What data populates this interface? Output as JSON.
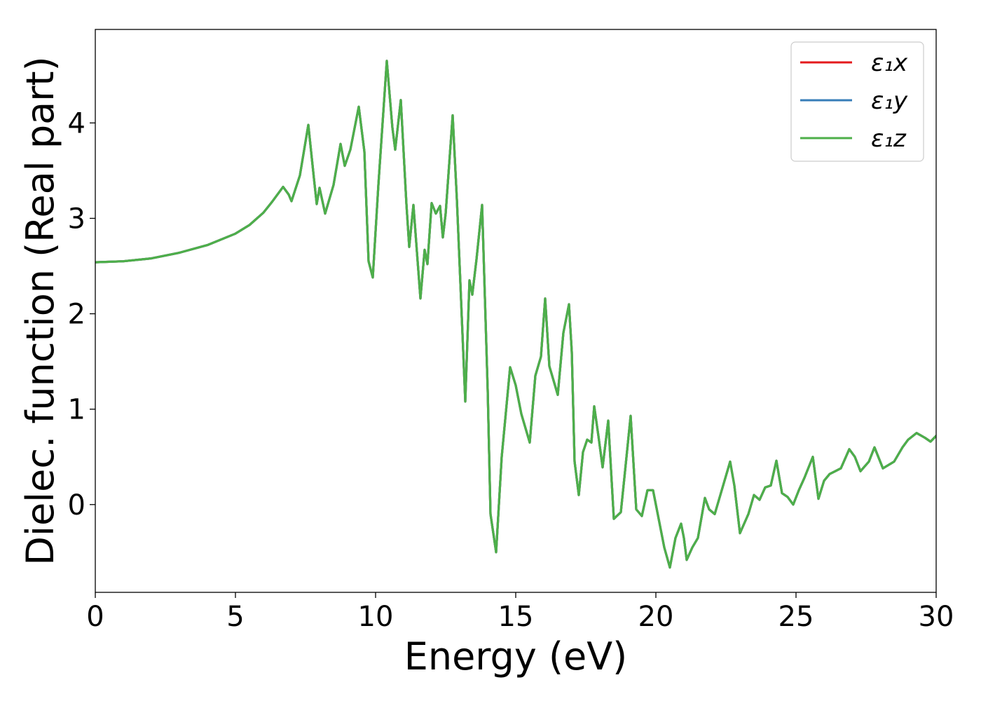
{
  "chart_data": {
    "type": "line",
    "title": "",
    "xlabel": "Energy (eV)",
    "ylabel": "Dielec. function (Real part)",
    "xlim": [
      0,
      30
    ],
    "ylim": [
      -0.92,
      4.98
    ],
    "xticks": [
      0,
      5,
      10,
      15,
      20,
      25,
      30
    ],
    "yticks": [
      0,
      1,
      2,
      3,
      4
    ],
    "grid": false,
    "legend_position": "top-right",
    "series": [
      {
        "name": "ε₁x",
        "color": "#e41a1c",
        "x": [
          0,
          1,
          2,
          3,
          4,
          5,
          5.5,
          6,
          6.3,
          6.7,
          6.9,
          7.0,
          7.3,
          7.6,
          7.8,
          7.9,
          8.0,
          8.2,
          8.5,
          8.75,
          8.9,
          9.1,
          9.4,
          9.6,
          9.75,
          9.9,
          10.1,
          10.4,
          10.6,
          10.7,
          10.9,
          11.1,
          11.2,
          11.35,
          11.5,
          11.6,
          11.75,
          11.85,
          12.0,
          12.15,
          12.3,
          12.4,
          12.5,
          12.75,
          12.9,
          13.0,
          13.2,
          13.35,
          13.45,
          13.6,
          13.8,
          14.0,
          14.1,
          14.3,
          14.5,
          14.8,
          15.0,
          15.2,
          15.5,
          15.7,
          15.9,
          16.05,
          16.2,
          16.3,
          16.5,
          16.7,
          16.9,
          17.0,
          17.1,
          17.25,
          17.4,
          17.55,
          17.7,
          17.8,
          17.95,
          18.1,
          18.3,
          18.5,
          18.75,
          18.9,
          19.1,
          19.3,
          19.5,
          19.7,
          19.9,
          20.1,
          20.3,
          20.5,
          20.7,
          20.9,
          21.0,
          21.1,
          21.3,
          21.5,
          21.75,
          21.9,
          22.1,
          22.4,
          22.65,
          22.8,
          23.0,
          23.3,
          23.5,
          23.7,
          23.9,
          24.1,
          24.3,
          24.5,
          24.7,
          24.9,
          25.1,
          25.3,
          25.6,
          25.8,
          26.0,
          26.2,
          26.4,
          26.6,
          26.9,
          27.1,
          27.3,
          27.6,
          27.8,
          28.1,
          28.5,
          28.8,
          29.0,
          29.3,
          29.6,
          29.8,
          30.0
        ],
        "y": [
          2.54,
          2.55,
          2.58,
          2.64,
          2.72,
          2.84,
          2.93,
          3.06,
          3.17,
          3.33,
          3.25,
          3.18,
          3.45,
          3.98,
          3.42,
          3.15,
          3.32,
          3.05,
          3.35,
          3.78,
          3.55,
          3.72,
          4.17,
          3.7,
          2.55,
          2.38,
          3.35,
          4.65,
          3.95,
          3.72,
          4.24,
          3.15,
          2.7,
          3.14,
          2.55,
          2.16,
          2.67,
          2.52,
          3.16,
          3.05,
          3.13,
          2.8,
          3.05,
          4.08,
          3.2,
          2.5,
          1.08,
          2.35,
          2.2,
          2.57,
          3.14,
          1.2,
          -0.1,
          -0.5,
          0.5,
          1.44,
          1.25,
          0.95,
          0.65,
          1.35,
          1.55,
          2.16,
          1.45,
          1.35,
          1.15,
          1.8,
          2.1,
          1.6,
          0.45,
          0.1,
          0.55,
          0.68,
          0.65,
          1.03,
          0.72,
          0.39,
          0.88,
          -0.15,
          -0.08,
          0.35,
          0.93,
          -0.05,
          -0.12,
          0.15,
          0.15,
          -0.15,
          -0.45,
          -0.66,
          -0.35,
          -0.2,
          -0.35,
          -0.58,
          -0.45,
          -0.35,
          0.07,
          -0.05,
          -0.1,
          0.2,
          0.45,
          0.2,
          -0.3,
          -0.1,
          0.1,
          0.05,
          0.18,
          0.2,
          0.46,
          0.12,
          0.08,
          0.0,
          0.15,
          0.28,
          0.5,
          0.06,
          0.25,
          0.32,
          0.35,
          0.38,
          0.58,
          0.5,
          0.35,
          0.45,
          0.6,
          0.38,
          0.45,
          0.6,
          0.68,
          0.75,
          0.7,
          0.66,
          0.72
        ]
      },
      {
        "name": "ε₁y",
        "color": "#377eb8",
        "x": [
          0,
          1,
          2,
          3,
          4,
          5,
          5.5,
          6,
          6.3,
          6.7,
          6.9,
          7.0,
          7.3,
          7.6,
          7.8,
          7.9,
          8.0,
          8.2,
          8.5,
          8.75,
          8.9,
          9.1,
          9.4,
          9.6,
          9.75,
          9.9,
          10.1,
          10.4,
          10.6,
          10.7,
          10.9,
          11.1,
          11.2,
          11.35,
          11.5,
          11.6,
          11.75,
          11.85,
          12.0,
          12.15,
          12.3,
          12.4,
          12.5,
          12.75,
          12.9,
          13.0,
          13.2,
          13.35,
          13.45,
          13.6,
          13.8,
          14.0,
          14.1,
          14.3,
          14.5,
          14.8,
          15.0,
          15.2,
          15.5,
          15.7,
          15.9,
          16.05,
          16.2,
          16.3,
          16.5,
          16.7,
          16.9,
          17.0,
          17.1,
          17.25,
          17.4,
          17.55,
          17.7,
          17.8,
          17.95,
          18.1,
          18.3,
          18.5,
          18.75,
          18.9,
          19.1,
          19.3,
          19.5,
          19.7,
          19.9,
          20.1,
          20.3,
          20.5,
          20.7,
          20.9,
          21.0,
          21.1,
          21.3,
          21.5,
          21.75,
          21.9,
          22.1,
          22.4,
          22.65,
          22.8,
          23.0,
          23.3,
          23.5,
          23.7,
          23.9,
          24.1,
          24.3,
          24.5,
          24.7,
          24.9,
          25.1,
          25.3,
          25.6,
          25.8,
          26.0,
          26.2,
          26.4,
          26.6,
          26.9,
          27.1,
          27.3,
          27.6,
          27.8,
          28.1,
          28.5,
          28.8,
          29.0,
          29.3,
          29.6,
          29.8,
          30.0
        ],
        "y": [
          2.54,
          2.55,
          2.58,
          2.64,
          2.72,
          2.84,
          2.93,
          3.06,
          3.17,
          3.33,
          3.25,
          3.18,
          3.45,
          3.98,
          3.42,
          3.15,
          3.32,
          3.05,
          3.35,
          3.78,
          3.55,
          3.72,
          4.17,
          3.7,
          2.55,
          2.38,
          3.35,
          4.65,
          3.95,
          3.72,
          4.24,
          3.15,
          2.7,
          3.14,
          2.55,
          2.16,
          2.67,
          2.52,
          3.16,
          3.05,
          3.13,
          2.8,
          3.05,
          4.08,
          3.2,
          2.5,
          1.08,
          2.35,
          2.2,
          2.57,
          3.14,
          1.2,
          -0.1,
          -0.5,
          0.5,
          1.44,
          1.25,
          0.95,
          0.65,
          1.35,
          1.55,
          2.16,
          1.45,
          1.35,
          1.15,
          1.8,
          2.1,
          1.6,
          0.45,
          0.1,
          0.55,
          0.68,
          0.65,
          1.03,
          0.72,
          0.39,
          0.88,
          -0.15,
          -0.08,
          0.35,
          0.93,
          -0.05,
          -0.12,
          0.15,
          0.15,
          -0.15,
          -0.45,
          -0.66,
          -0.35,
          -0.2,
          -0.35,
          -0.58,
          -0.45,
          -0.35,
          0.07,
          -0.05,
          -0.1,
          0.2,
          0.45,
          0.2,
          -0.3,
          -0.1,
          0.1,
          0.05,
          0.18,
          0.2,
          0.46,
          0.12,
          0.08,
          0.0,
          0.15,
          0.28,
          0.5,
          0.06,
          0.25,
          0.32,
          0.35,
          0.38,
          0.58,
          0.5,
          0.35,
          0.45,
          0.6,
          0.38,
          0.45,
          0.6,
          0.68,
          0.75,
          0.7,
          0.66,
          0.72
        ]
      },
      {
        "name": "ε₁z",
        "color": "#4daf4a",
        "x": [
          0,
          1,
          2,
          3,
          4,
          5,
          5.5,
          6,
          6.3,
          6.7,
          6.9,
          7.0,
          7.3,
          7.6,
          7.8,
          7.9,
          8.0,
          8.2,
          8.5,
          8.75,
          8.9,
          9.1,
          9.4,
          9.6,
          9.75,
          9.9,
          10.1,
          10.4,
          10.6,
          10.7,
          10.9,
          11.1,
          11.2,
          11.35,
          11.5,
          11.6,
          11.75,
          11.85,
          12.0,
          12.15,
          12.3,
          12.4,
          12.5,
          12.75,
          12.9,
          13.0,
          13.2,
          13.35,
          13.45,
          13.6,
          13.8,
          14.0,
          14.1,
          14.3,
          14.5,
          14.8,
          15.0,
          15.2,
          15.5,
          15.7,
          15.9,
          16.05,
          16.2,
          16.3,
          16.5,
          16.7,
          16.9,
          17.0,
          17.1,
          17.25,
          17.4,
          17.55,
          17.7,
          17.8,
          17.95,
          18.1,
          18.3,
          18.5,
          18.75,
          18.9,
          19.1,
          19.3,
          19.5,
          19.7,
          19.9,
          20.1,
          20.3,
          20.5,
          20.7,
          20.9,
          21.0,
          21.1,
          21.3,
          21.5,
          21.75,
          21.9,
          22.1,
          22.4,
          22.65,
          22.8,
          23.0,
          23.3,
          23.5,
          23.7,
          23.9,
          24.1,
          24.3,
          24.5,
          24.7,
          24.9,
          25.1,
          25.3,
          25.6,
          25.8,
          26.0,
          26.2,
          26.4,
          26.6,
          26.9,
          27.1,
          27.3,
          27.6,
          27.8,
          28.1,
          28.5,
          28.8,
          29.0,
          29.3,
          29.6,
          29.8,
          30.0
        ],
        "y": [
          2.54,
          2.55,
          2.58,
          2.64,
          2.72,
          2.84,
          2.93,
          3.06,
          3.17,
          3.33,
          3.25,
          3.18,
          3.45,
          3.98,
          3.42,
          3.15,
          3.32,
          3.05,
          3.35,
          3.78,
          3.55,
          3.72,
          4.17,
          3.7,
          2.55,
          2.38,
          3.35,
          4.65,
          3.95,
          3.72,
          4.24,
          3.15,
          2.7,
          3.14,
          2.55,
          2.16,
          2.67,
          2.52,
          3.16,
          3.05,
          3.13,
          2.8,
          3.05,
          4.08,
          3.2,
          2.5,
          1.08,
          2.35,
          2.2,
          2.57,
          3.14,
          1.2,
          -0.1,
          -0.5,
          0.5,
          1.44,
          1.25,
          0.95,
          0.65,
          1.35,
          1.55,
          2.16,
          1.45,
          1.35,
          1.15,
          1.8,
          2.1,
          1.6,
          0.45,
          0.1,
          0.55,
          0.68,
          0.65,
          1.03,
          0.72,
          0.39,
          0.88,
          -0.15,
          -0.08,
          0.35,
          0.93,
          -0.05,
          -0.12,
          0.15,
          0.15,
          -0.15,
          -0.45,
          -0.66,
          -0.35,
          -0.2,
          -0.35,
          -0.58,
          -0.45,
          -0.35,
          0.07,
          -0.05,
          -0.1,
          0.2,
          0.45,
          0.2,
          -0.3,
          -0.1,
          0.1,
          0.05,
          0.18,
          0.2,
          0.46,
          0.12,
          0.08,
          0.0,
          0.15,
          0.28,
          0.5,
          0.06,
          0.25,
          0.32,
          0.35,
          0.38,
          0.58,
          0.5,
          0.35,
          0.45,
          0.6,
          0.38,
          0.45,
          0.6,
          0.68,
          0.75,
          0.7,
          0.66,
          0.72
        ]
      }
    ]
  }
}
